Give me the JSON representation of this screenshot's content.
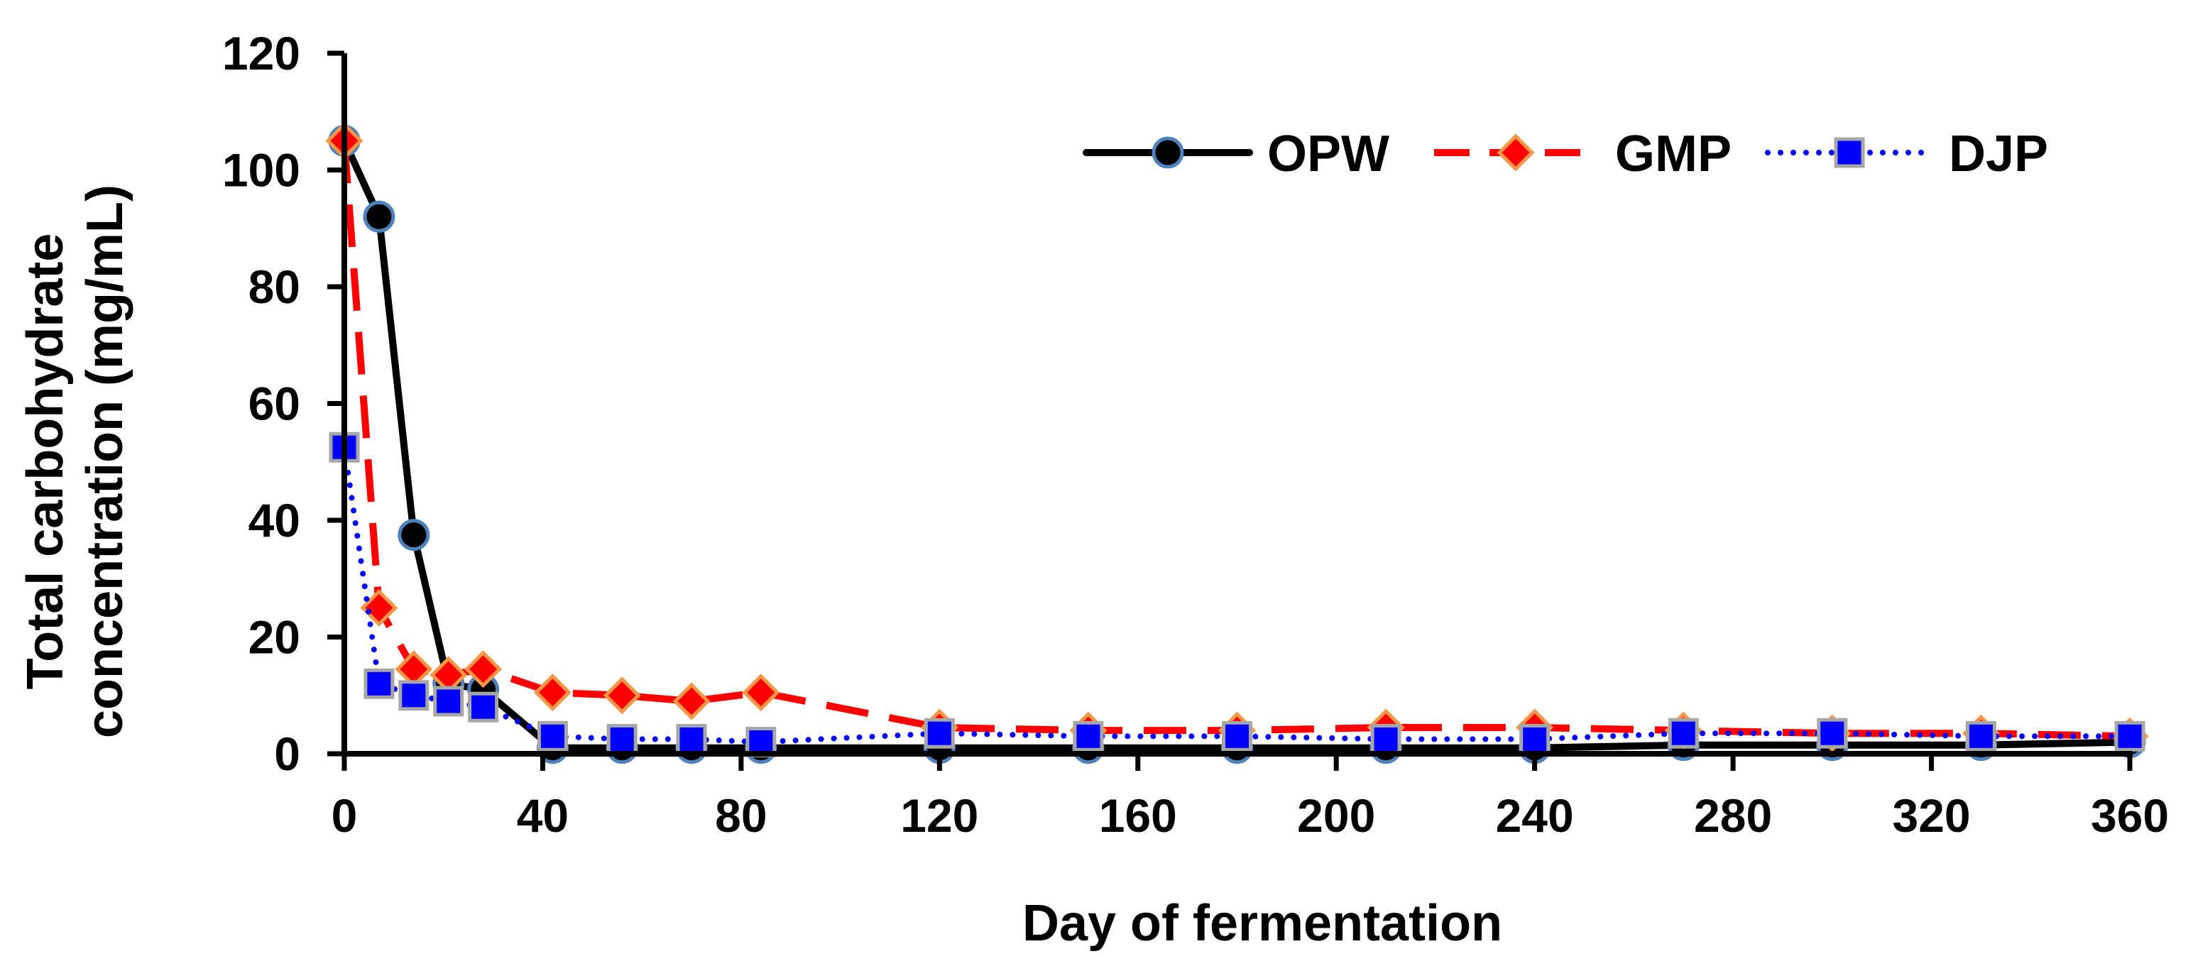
{
  "chart_data": {
    "type": "line",
    "title": "",
    "xlabel": "Day of fermentation",
    "ylabel_lines": [
      "Total carbohydrate",
      "concentration (mg/mL)"
    ],
    "xlim": [
      0,
      360
    ],
    "ylim": [
      0,
      120
    ],
    "xticks": [
      0,
      40,
      80,
      120,
      160,
      200,
      240,
      280,
      320,
      360
    ],
    "yticks": [
      0,
      20,
      40,
      60,
      80,
      100,
      120
    ],
    "grid": false,
    "legend_position": "top-right",
    "series": [
      {
        "name": "OPW",
        "color": "#000000",
        "dash": "solid",
        "marker": "circle",
        "marker_fill": "#000000",
        "marker_stroke": "#4f81bd",
        "x": [
          0,
          7,
          14,
          21,
          28,
          42,
          56,
          70,
          84,
          120,
          150,
          180,
          210,
          240,
          270,
          300,
          330,
          360
        ],
        "y": [
          105,
          92,
          37.5,
          12,
          11,
          1,
          1,
          1,
          1,
          1,
          1,
          1,
          1,
          1,
          1.5,
          1.5,
          1.5,
          2
        ]
      },
      {
        "name": "GMP",
        "color": "#ff0000",
        "dash": "long-dash",
        "marker": "diamond",
        "marker_fill": "#ff0000",
        "marker_stroke": "#f79646",
        "x": [
          0,
          7,
          14,
          21,
          28,
          42,
          56,
          70,
          84,
          120,
          150,
          180,
          210,
          240,
          270,
          300,
          330,
          360
        ],
        "y": [
          105,
          25,
          14.5,
          13.5,
          14.5,
          10.5,
          10,
          9,
          10.5,
          4.5,
          4,
          4,
          4.5,
          4.5,
          4,
          3.5,
          3.5,
          3
        ]
      },
      {
        "name": "DJP",
        "color": "#0000ff",
        "dash": "dotted",
        "marker": "square",
        "marker_fill": "#0000ff",
        "marker_stroke": "#a6a6a6",
        "x": [
          0,
          7,
          14,
          21,
          28,
          42,
          56,
          70,
          84,
          120,
          150,
          180,
          210,
          240,
          270,
          300,
          330,
          360
        ],
        "y": [
          52.5,
          12,
          10,
          9,
          8,
          3,
          2.5,
          2.5,
          2,
          3.5,
          3,
          3,
          2.5,
          2.5,
          3.5,
          3.5,
          3,
          3
        ]
      }
    ]
  }
}
